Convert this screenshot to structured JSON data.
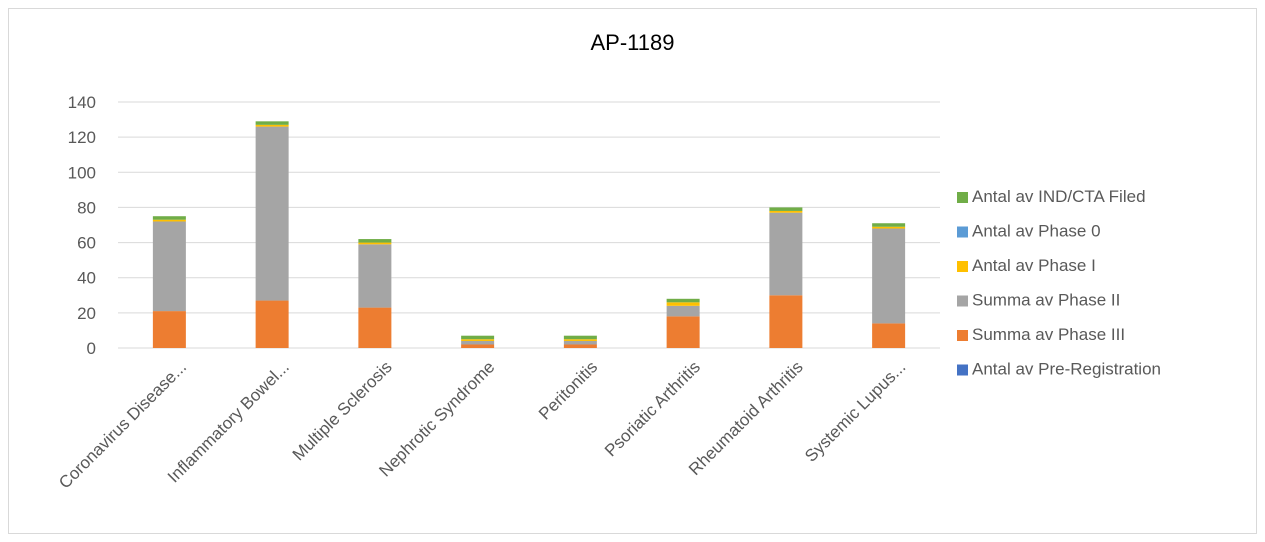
{
  "chart_data": {
    "type": "bar",
    "stacked": true,
    "title": "AP-1189",
    "xlabel": "",
    "ylabel": "",
    "ylim": [
      0,
      140
    ],
    "yticks": [
      0,
      20,
      40,
      60,
      80,
      100,
      120,
      140
    ],
    "grid": true,
    "legend_position": "right",
    "categories": [
      "Coronavirus Disease...",
      "Inflammatory Bowel...",
      "Multiple Sclerosis",
      "Nephrotic Syndrome",
      "Peritonitis",
      "Psoriatic Arthritis",
      "Rheumatoid Arthritis",
      "Systemic Lupus..."
    ],
    "series": [
      {
        "name": "Antal av Pre-Registration",
        "color": "#4472c4",
        "values": [
          0,
          0,
          0,
          0,
          0,
          0,
          0,
          0
        ]
      },
      {
        "name": "Summa av Phase III",
        "color": "#ed7d31",
        "values": [
          21,
          27,
          23,
          2,
          2,
          18,
          30,
          14
        ]
      },
      {
        "name": "Summa av Phase II",
        "color": "#a5a5a5",
        "values": [
          51,
          99,
          36,
          2,
          2,
          6,
          47,
          54
        ]
      },
      {
        "name": "Antal av Phase I",
        "color": "#ffc000",
        "values": [
          1,
          1,
          1,
          1,
          1,
          2,
          1,
          1
        ]
      },
      {
        "name": "Antal av Phase 0",
        "color": "#5b9bd5",
        "values": [
          0,
          0,
          0,
          0,
          0,
          0,
          0,
          0
        ]
      },
      {
        "name": "Antal av IND/CTA Filed",
        "color": "#70ad47",
        "values": [
          2,
          2,
          2,
          2,
          2,
          2,
          2,
          2
        ]
      }
    ]
  }
}
